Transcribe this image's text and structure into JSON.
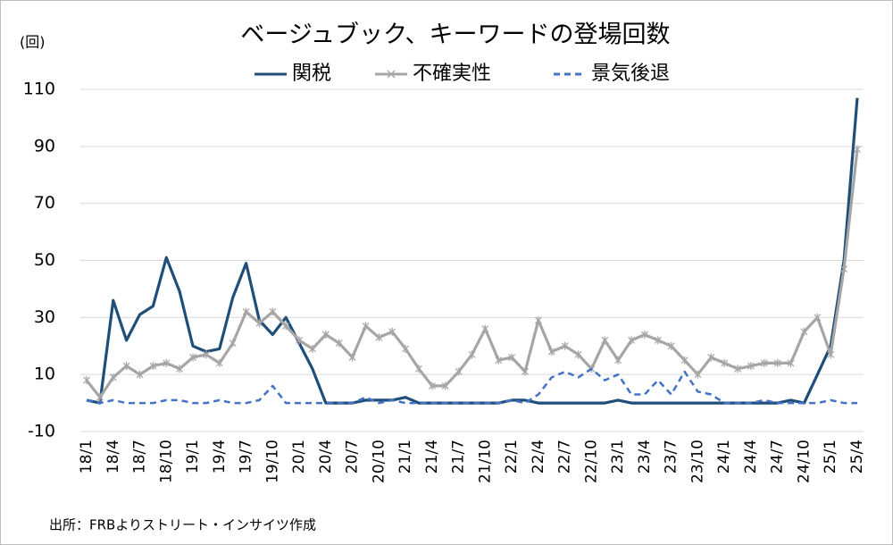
{
  "chart_data": {
    "type": "line",
    "title": "ベージュブック、キーワードの登場回数",
    "y_axis_label": "(回)",
    "note": "出所：FRBよりストリート・インサイツ作成",
    "categories": [
      "18/1",
      null,
      "18/4",
      null,
      "18/7",
      null,
      "18/10",
      null,
      "19/1",
      null,
      "19/4",
      null,
      "19/7",
      null,
      "19/10",
      null,
      "20/1",
      null,
      "20/4",
      null,
      "20/7",
      null,
      "20/10",
      null,
      "21/1",
      null,
      "21/4",
      null,
      "21/7",
      null,
      "21/10",
      null,
      "22/1",
      null,
      "22/4",
      null,
      "22/7",
      null,
      "22/10",
      null,
      "23/1",
      null,
      "23/4",
      null,
      "23/7",
      null,
      "23/10",
      null,
      "24/1",
      null,
      "24/4",
      null,
      "24/7",
      null,
      "24/10",
      null,
      "25/1",
      null,
      "25/4"
    ],
    "series": [
      {
        "name": "関税",
        "color": "#1f4e79",
        "dash": false,
        "values": [
          1,
          0,
          36,
          22,
          31,
          34,
          51,
          39,
          20,
          18,
          19,
          37,
          49,
          29,
          24,
          30,
          21,
          12,
          0,
          0,
          0,
          1,
          1,
          1,
          2,
          0,
          0,
          0,
          0,
          0,
          0,
          0,
          1,
          1,
          0,
          0,
          0,
          0,
          0,
          0,
          1,
          0,
          0,
          0,
          0,
          0,
          0,
          0,
          0,
          0,
          0,
          0,
          0,
          1,
          0,
          10,
          20,
          50,
          107
        ]
      },
      {
        "name": "不確実性",
        "color": "#a6a6a6",
        "dash": false,
        "markers": true,
        "values": [
          8,
          2,
          9,
          13,
          10,
          13,
          14,
          12,
          16,
          17,
          14,
          21,
          32,
          28,
          32,
          27,
          22,
          19,
          24,
          21,
          16,
          27,
          23,
          25,
          19,
          12,
          6,
          6,
          11,
          17,
          26,
          15,
          16,
          11,
          29,
          18,
          20,
          17,
          12,
          22,
          15,
          22,
          24,
          22,
          20,
          15,
          10,
          16,
          14,
          12,
          13,
          14,
          14,
          14,
          25,
          30,
          17,
          47,
          89
        ]
      },
      {
        "name": "景気後退",
        "color": "#4472c4",
        "dash": true,
        "values": [
          1,
          0,
          1,
          0,
          0,
          0,
          1,
          1,
          0,
          0,
          1,
          0,
          0,
          1,
          6,
          0,
          0,
          0,
          0,
          0,
          0,
          2,
          0,
          1,
          0,
          0,
          0,
          0,
          0,
          0,
          0,
          0,
          1,
          0,
          3,
          9,
          11,
          9,
          12,
          8,
          10,
          3,
          3,
          8,
          3,
          11,
          4,
          3,
          0,
          0,
          0,
          1,
          0,
          0,
          0,
          0,
          1,
          0,
          0
        ]
      }
    ],
    "ylim": [
      -10,
      110
    ],
    "yticks": [
      -10,
      10,
      30,
      50,
      70,
      90,
      110
    ],
    "grid": true,
    "legend": "top"
  }
}
